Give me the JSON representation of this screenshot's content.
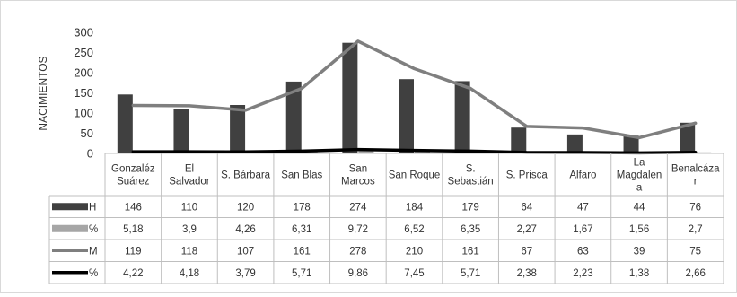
{
  "chart_data": {
    "type": "bar",
    "ylabel": "NACIMIENTOS",
    "ylim": [
      0,
      300
    ],
    "yticks": [
      "0",
      "50",
      "100",
      "150",
      "200",
      "250",
      "300"
    ],
    "categories": [
      [
        "Gonzaléz",
        "Suárez"
      ],
      [
        "El",
        "Salvador"
      ],
      [
        "S. Bárbara"
      ],
      [
        "San Blas"
      ],
      [
        "San",
        "Marcos"
      ],
      [
        "San Roque"
      ],
      [
        "S.",
        "Sebastián"
      ],
      [
        "S. Prisca"
      ],
      [
        "Alfaro"
      ],
      [
        "La",
        "Magdalen",
        "a"
      ],
      [
        "Benalcáza",
        "r"
      ]
    ],
    "series": [
      {
        "name": "H",
        "kind": "bar",
        "color": "#404040",
        "values": [
          146,
          110,
          120,
          178,
          274,
          184,
          179,
          64,
          47,
          44,
          76
        ],
        "labels": [
          "146",
          "110",
          "120",
          "178",
          "274",
          "184",
          "179",
          "64",
          "47",
          "44",
          "76"
        ]
      },
      {
        "name": "%",
        "kind": "bar",
        "color": "#a6a6a6",
        "values": [
          5.18,
          3.9,
          4.26,
          6.31,
          9.72,
          6.52,
          6.35,
          2.27,
          1.67,
          1.56,
          2.7
        ],
        "labels": [
          "5,18",
          "3,9",
          "4,26",
          "6,31",
          "9,72",
          "6,52",
          "6,35",
          "2,27",
          "1,67",
          "1,56",
          "2,7"
        ]
      },
      {
        "name": "M",
        "kind": "line",
        "color": "#7f7f7f",
        "values": [
          119,
          118,
          107,
          161,
          278,
          210,
          161,
          67,
          63,
          39,
          75
        ],
        "labels": [
          "119",
          "118",
          "107",
          "161",
          "278",
          "210",
          "161",
          "67",
          "63",
          "39",
          "75"
        ]
      },
      {
        "name": "%",
        "kind": "line",
        "color": "#000000",
        "values": [
          4.22,
          4.18,
          3.79,
          5.71,
          9.86,
          7.45,
          5.71,
          2.38,
          2.23,
          1.38,
          2.66
        ],
        "labels": [
          "4,22",
          "4,18",
          "3,79",
          "5,71",
          "9,86",
          "7,45",
          "5,71",
          "2,38",
          "2,23",
          "1,38",
          "2,66"
        ]
      }
    ]
  }
}
